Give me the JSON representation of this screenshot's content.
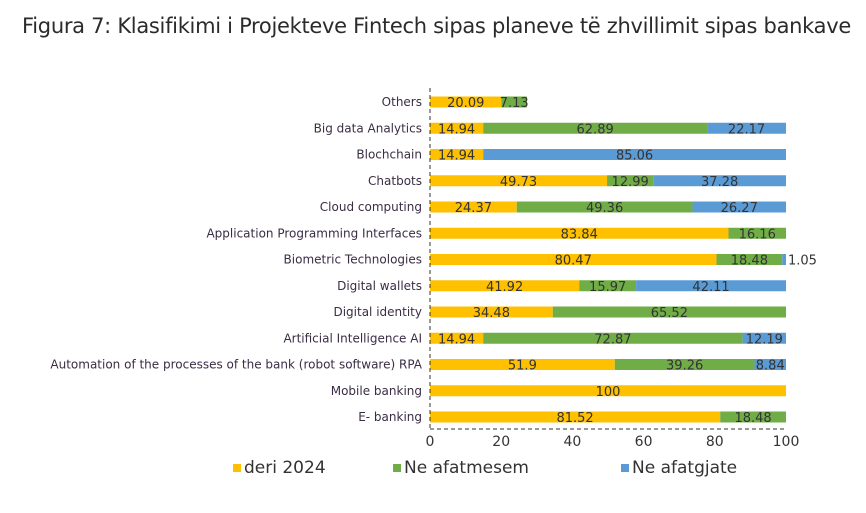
{
  "chart_data": {
    "type": "bar",
    "orientation": "horizontal",
    "stacked": true,
    "title": "Figura 7: Klasifikimi i Projekteve Fintech sipas planeve të zhvillimit sipas bankave",
    "categories": [
      "Others",
      "Big data Analytics",
      "Blochchain",
      "Chatbots",
      "Cloud computing",
      "Application Programming Interfaces",
      "Biometric Technologies",
      "Digital wallets",
      "Digital identity",
      "Artificial Intelligence AI",
      "Automation of the processes of the bank (robot software) RPA",
      "Mobile banking",
      "E- banking"
    ],
    "series": [
      {
        "name": "deri 2024",
        "color": "#FFC000",
        "values": [
          20.09,
          14.94,
          14.94,
          49.73,
          24.37,
          83.84,
          80.47,
          41.92,
          34.48,
          14.94,
          51.9,
          100,
          81.52
        ]
      },
      {
        "name": "Ne afatmesem",
        "color": "#70AD47",
        "values": [
          7.13,
          62.89,
          0,
          12.99,
          49.36,
          16.16,
          18.48,
          15.97,
          65.52,
          72.87,
          39.26,
          0,
          18.48
        ]
      },
      {
        "name": "Ne afatgjate",
        "color": "#5B9BD5",
        "values": [
          0,
          22.17,
          85.06,
          37.28,
          26.27,
          0,
          1.05,
          42.11,
          0,
          12.19,
          8.84,
          0,
          0
        ]
      }
    ],
    "xlim": [
      0,
      100
    ],
    "xticks": [
      0,
      20,
      40,
      60,
      80,
      100
    ],
    "grid": false,
    "legend": "bottom"
  }
}
